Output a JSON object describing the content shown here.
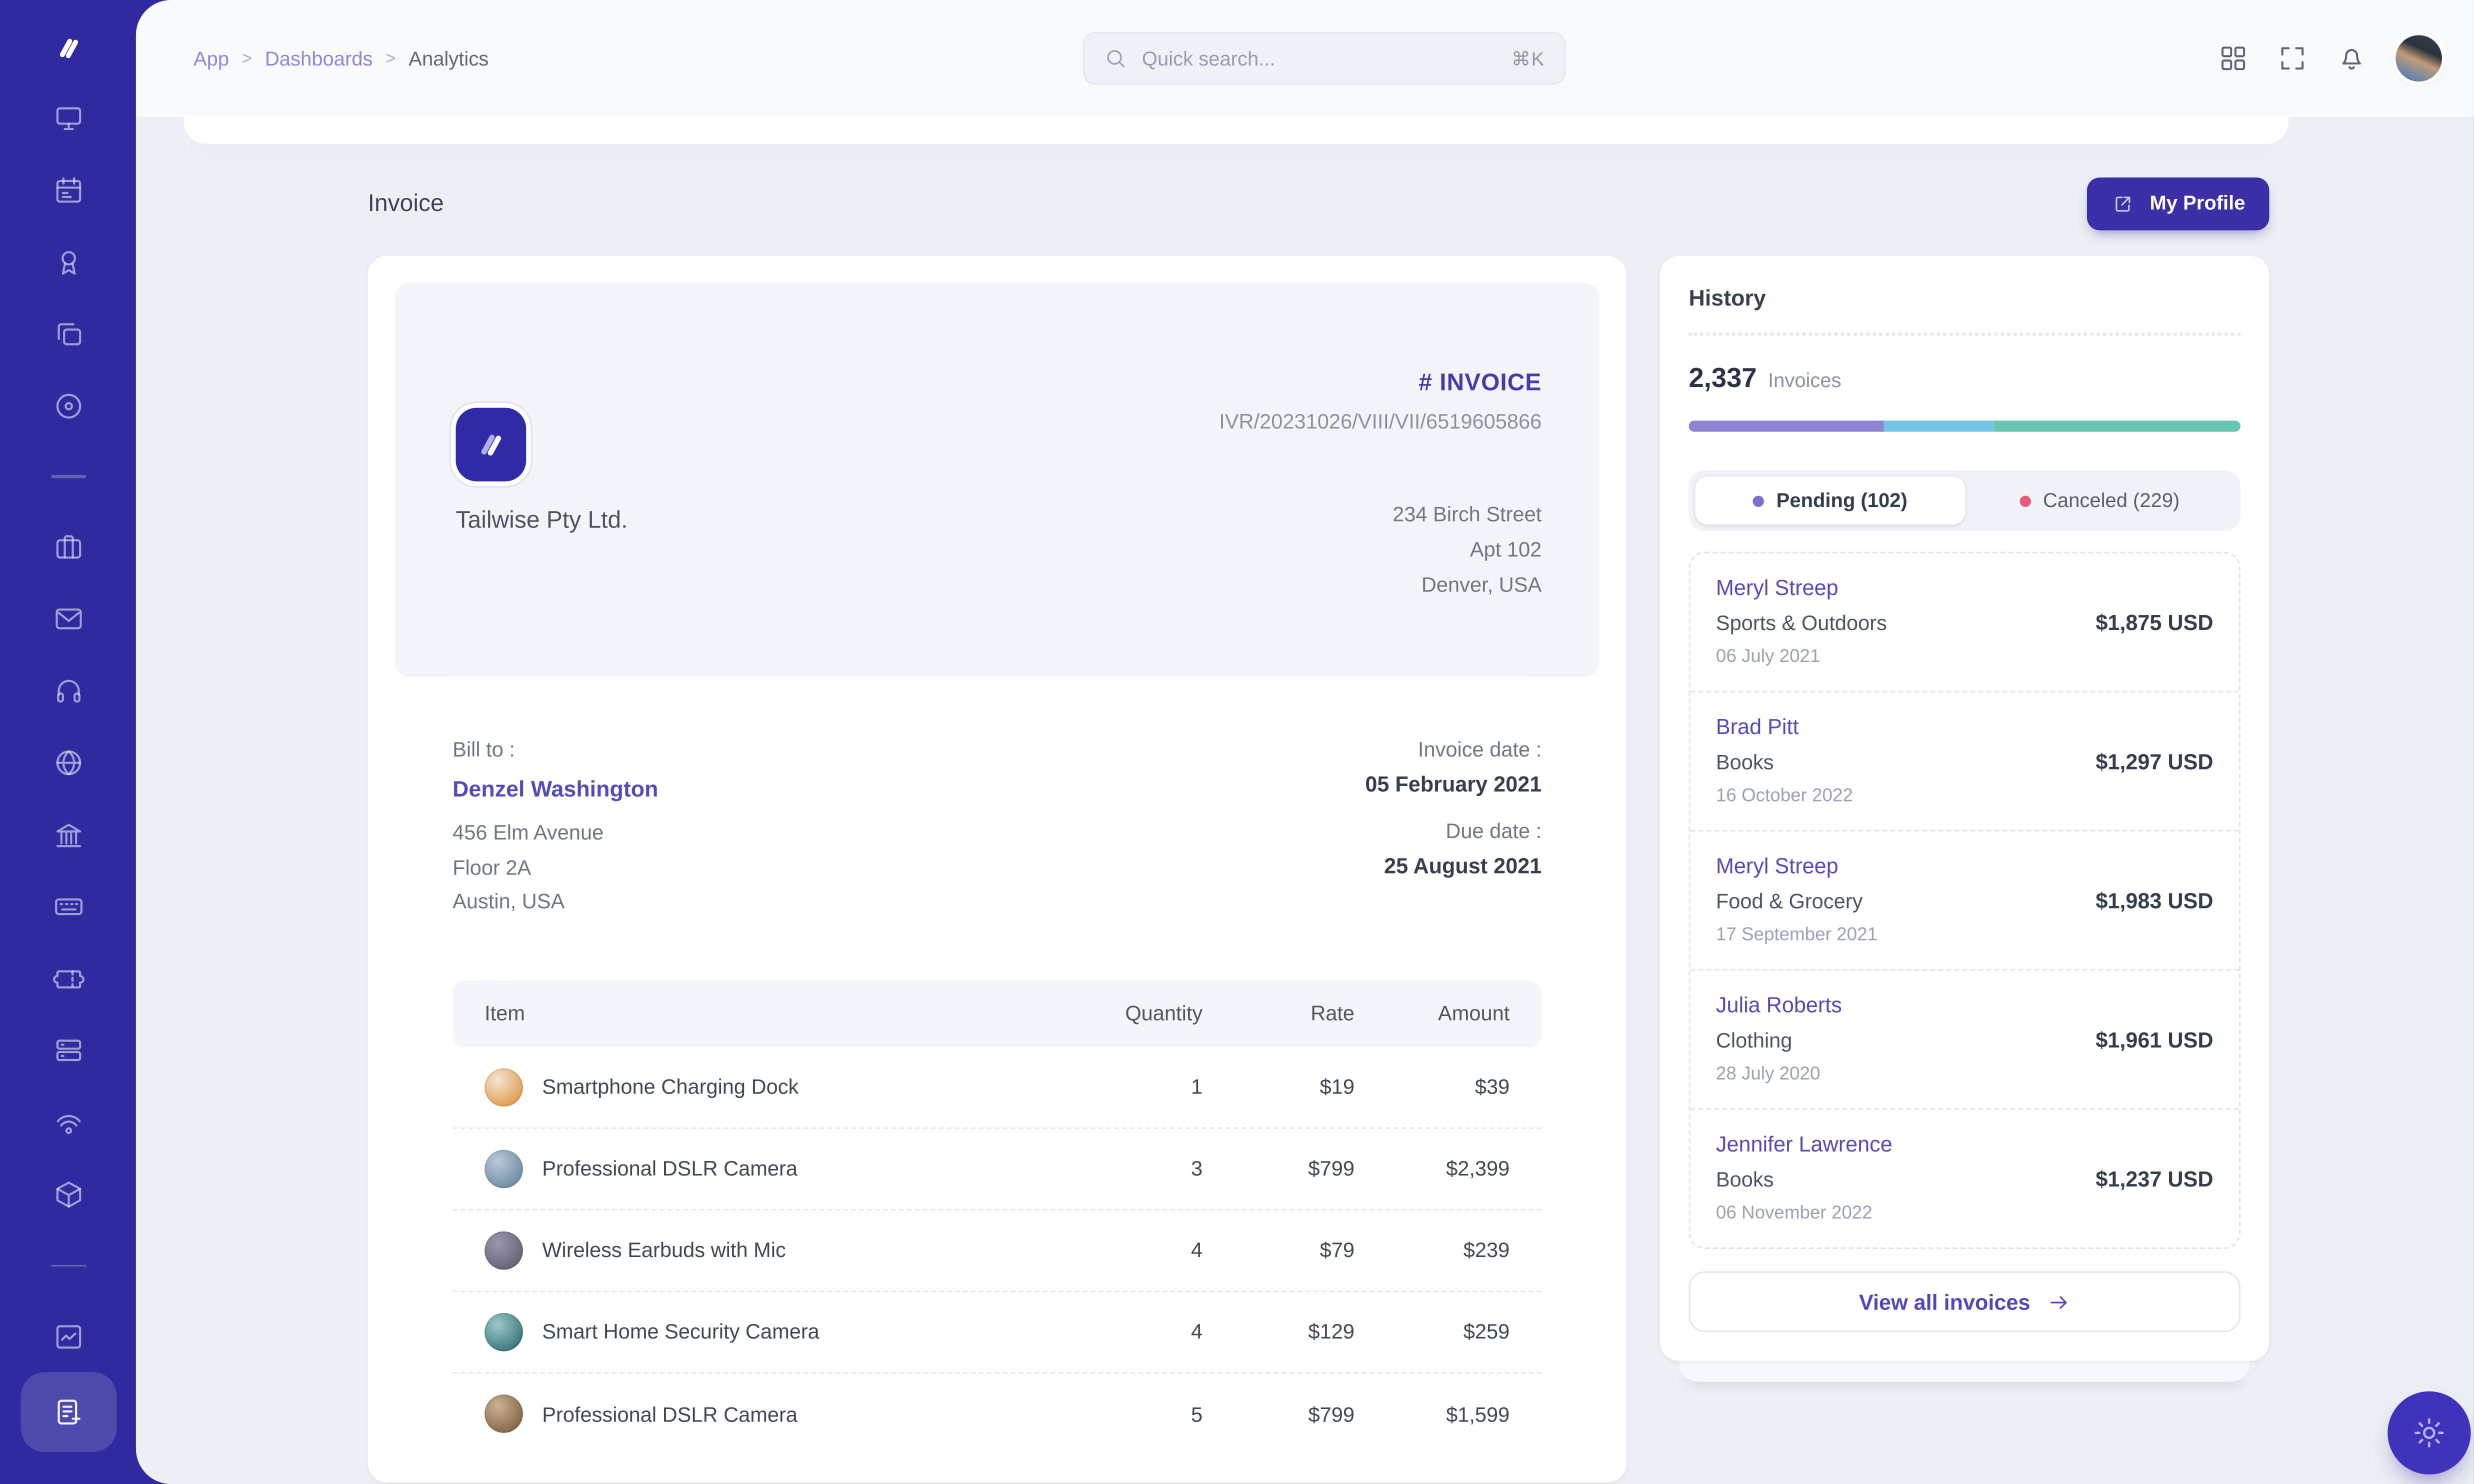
{
  "theme": {
    "sidebar_bg": "#2f2b9e",
    "accent_indigo": "#3a2fa6",
    "link_indigo": "#534bbb",
    "content_bg": "#edeff4",
    "header_bg": "#f8f9fb"
  },
  "sidebar": {
    "groups": [
      [
        "monitor",
        "calendar",
        "award",
        "copy",
        "disc"
      ],
      [
        "briefcase",
        "mail",
        "headphones",
        "globe",
        "bank",
        "keyboard",
        "ticket",
        "archive",
        "podcast",
        "package"
      ],
      [
        "chart",
        "invoice"
      ]
    ],
    "active": "invoice"
  },
  "header": {
    "breadcrumb": [
      "App",
      "Dashboards",
      "Analytics"
    ],
    "breadcrumb_separator": ">",
    "search_placeholder": "Quick search...",
    "search_shortcut": "⌘K"
  },
  "page": {
    "title": "Invoice",
    "profile_button": "My Profile"
  },
  "invoice": {
    "company": "Tailwise Pty Ltd.",
    "doc_label": "# INVOICE",
    "number": "IVR/20231026/VIII/VII/6519605866",
    "company_address": [
      "234 Birch Street",
      "Apt 102",
      "Denver, USA"
    ],
    "bill_to_label": "Bill to :",
    "bill_to_name": "Denzel Washington",
    "bill_to_address": [
      "456 Elm Avenue",
      "Floor 2A",
      "Austin, USA"
    ],
    "invoice_date_label": "Invoice date :",
    "invoice_date": "05 February 2021",
    "due_date_label": "Due date :",
    "due_date": "25 August 2021",
    "table": {
      "columns": [
        "Item",
        "Quantity",
        "Rate",
        "Amount"
      ],
      "rows": [
        {
          "item": "Smartphone Charging Dock",
          "qty": "1",
          "rate": "$19",
          "amount": "$39",
          "thumb1": "#f2e5cf",
          "thumb2": "#dd862f"
        },
        {
          "item": "Professional DSLR Camera",
          "qty": "3",
          "rate": "$799",
          "amount": "$2,399",
          "thumb1": "#b9c8d8",
          "thumb2": "#5a7a94"
        },
        {
          "item": "Wireless Earbuds with Mic",
          "qty": "4",
          "rate": "$79",
          "amount": "$239",
          "thumb1": "#9a97ad",
          "thumb2": "#565468"
        },
        {
          "item": "Smart Home Security Camera",
          "qty": "4",
          "rate": "$129",
          "amount": "$259",
          "thumb1": "#9ec9c9",
          "thumb2": "#1f5d66"
        },
        {
          "item": "Professional DSLR Camera",
          "qty": "5",
          "rate": "$799",
          "amount": "$1,599",
          "thumb1": "#cdb193",
          "thumb2": "#6e4f33"
        }
      ]
    }
  },
  "history": {
    "title": "History",
    "count": "2,337",
    "count_label": "Invoices",
    "progress": [
      {
        "color": "#8d84d4",
        "pct": 35.5
      },
      {
        "color": "#74c4e6",
        "pct": 20
      },
      {
        "color": "#67c6b2",
        "pct": 44.5
      }
    ],
    "tabs": [
      {
        "label": "Pending (102)",
        "dot": "#7e6fd1",
        "active": true
      },
      {
        "label": "Canceled (229)",
        "dot": "#e25c7a",
        "active": false
      }
    ],
    "entries": [
      {
        "name": "Meryl Streep",
        "category": "Sports & Outdoors",
        "date": "06 July 2021",
        "amount": "$1,875 USD"
      },
      {
        "name": "Brad Pitt",
        "category": "Books",
        "date": "16 October 2022",
        "amount": "$1,297 USD"
      },
      {
        "name": "Meryl Streep",
        "category": "Food & Grocery",
        "date": "17 September 2021",
        "amount": "$1,983 USD"
      },
      {
        "name": "Julia Roberts",
        "category": "Clothing",
        "date": "28 July 2020",
        "amount": "$1,961 USD"
      },
      {
        "name": "Jennifer Lawrence",
        "category": "Books",
        "date": "06 November 2022",
        "amount": "$1,237 USD"
      }
    ],
    "view_all": "View all invoices"
  }
}
